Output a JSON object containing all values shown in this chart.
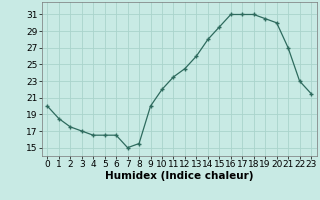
{
  "x": [
    0,
    1,
    2,
    3,
    4,
    5,
    6,
    7,
    8,
    9,
    10,
    11,
    12,
    13,
    14,
    15,
    16,
    17,
    18,
    19,
    20,
    21,
    22,
    23
  ],
  "y": [
    20,
    18.5,
    17.5,
    17,
    16.5,
    16.5,
    16.5,
    15,
    15.5,
    20,
    22,
    23.5,
    24.5,
    26,
    28,
    29.5,
    31,
    31,
    31,
    30.5,
    30,
    27,
    23,
    21.5
  ],
  "line_color": "#2e6b5e",
  "marker": "+",
  "bg_color": "#c8eae4",
  "grid_color": "#aad4cc",
  "xlabel": "Humidex (Indice chaleur)",
  "ylabel": "",
  "xlim": [
    -0.5,
    23.5
  ],
  "ylim": [
    14,
    32.5
  ],
  "yticks": [
    15,
    17,
    19,
    21,
    23,
    25,
    27,
    29,
    31
  ],
  "xticks": [
    0,
    1,
    2,
    3,
    4,
    5,
    6,
    7,
    8,
    9,
    10,
    11,
    12,
    13,
    14,
    15,
    16,
    17,
    18,
    19,
    20,
    21,
    22,
    23
  ],
  "label_fontsize": 7.5,
  "tick_fontsize": 6.5
}
